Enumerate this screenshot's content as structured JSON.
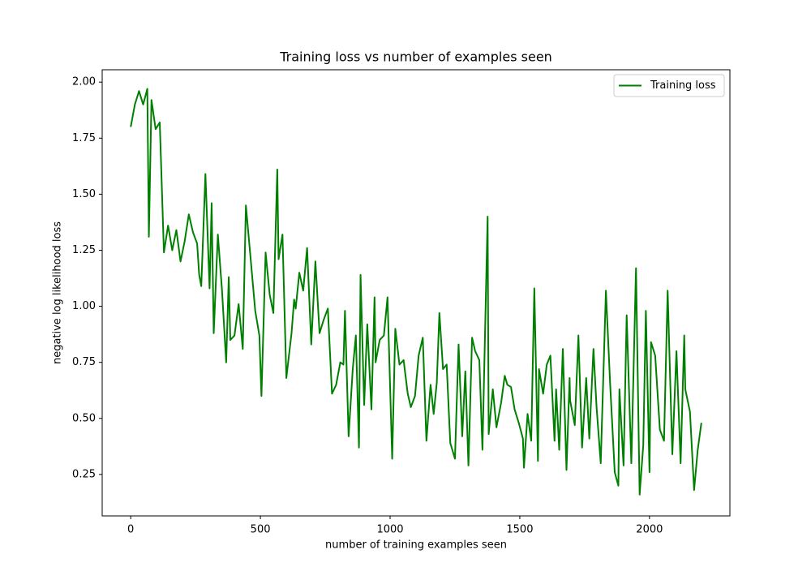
{
  "chart_data": {
    "type": "line",
    "title": "Training loss vs number of examples seen",
    "xlabel": "number of training examples seen",
    "ylabel": "negative log likelihood loss",
    "x": [
      0,
      16,
      32,
      48,
      64,
      70,
      80,
      96,
      112,
      128,
      144,
      160,
      176,
      192,
      208,
      224,
      240,
      256,
      264,
      272,
      288,
      304,
      312,
      320,
      336,
      352,
      368,
      378,
      384,
      400,
      416,
      432,
      444,
      464,
      480,
      496,
      504,
      520,
      536,
      550,
      565,
      570,
      585,
      600,
      620,
      630,
      636,
      650,
      665,
      680,
      696,
      712,
      728,
      744,
      760,
      776,
      792,
      808,
      820,
      826,
      840,
      856,
      868,
      880,
      886,
      900,
      912,
      928,
      940,
      944,
      960,
      976,
      990,
      1008,
      1020,
      1036,
      1052,
      1068,
      1080,
      1096,
      1110,
      1126,
      1140,
      1156,
      1168,
      1180,
      1190,
      1204,
      1218,
      1232,
      1250,
      1264,
      1278,
      1290,
      1302,
      1316,
      1328,
      1344,
      1356,
      1376,
      1380,
      1396,
      1410,
      1428,
      1442,
      1452,
      1466,
      1480,
      1496,
      1512,
      1516,
      1530,
      1544,
      1556,
      1570,
      1574,
      1590,
      1604,
      1618,
      1634,
      1640,
      1652,
      1666,
      1680,
      1692,
      1694,
      1712,
      1726,
      1740,
      1756,
      1768,
      1784,
      1796,
      1812,
      1832,
      1848,
      1866,
      1880,
      1884,
      1900,
      1912,
      1930,
      1948,
      1962,
      1976,
      1986,
      2000,
      2006,
      2022,
      2040,
      2056,
      2070,
      2088,
      2104,
      2120,
      2134,
      2138,
      2156,
      2172,
      2186,
      2200
    ],
    "series": [
      {
        "name": "Training loss",
        "color": "#008000",
        "values": [
          1.8,
          1.9,
          1.96,
          1.9,
          1.97,
          1.31,
          1.92,
          1.79,
          1.82,
          1.24,
          1.36,
          1.25,
          1.34,
          1.2,
          1.29,
          1.41,
          1.33,
          1.28,
          1.14,
          1.09,
          1.59,
          1.08,
          1.46,
          0.88,
          1.32,
          1.07,
          0.75,
          1.13,
          0.85,
          0.87,
          1.01,
          0.81,
          1.45,
          1.19,
          0.98,
          0.87,
          0.6,
          1.24,
          1.05,
          0.97,
          1.61,
          1.21,
          1.32,
          0.68,
          0.88,
          1.03,
          0.99,
          1.15,
          1.07,
          1.26,
          0.83,
          1.2,
          0.88,
          0.94,
          0.99,
          0.61,
          0.65,
          0.75,
          0.74,
          0.98,
          0.42,
          0.72,
          0.87,
          0.37,
          1.14,
          0.56,
          0.92,
          0.54,
          1.04,
          0.75,
          0.85,
          0.87,
          1.04,
          0.32,
          0.9,
          0.74,
          0.76,
          0.61,
          0.55,
          0.6,
          0.78,
          0.86,
          0.4,
          0.65,
          0.52,
          0.66,
          0.97,
          0.72,
          0.74,
          0.39,
          0.32,
          0.83,
          0.42,
          0.71,
          0.29,
          0.86,
          0.8,
          0.76,
          0.36,
          1.4,
          0.43,
          0.63,
          0.46,
          0.57,
          0.69,
          0.65,
          0.64,
          0.54,
          0.48,
          0.41,
          0.28,
          0.52,
          0.4,
          1.08,
          0.31,
          0.72,
          0.61,
          0.74,
          0.78,
          0.4,
          0.63,
          0.36,
          0.81,
          0.27,
          0.68,
          0.58,
          0.47,
          0.87,
          0.37,
          0.68,
          0.41,
          0.81,
          0.55,
          0.3,
          1.07,
          0.66,
          0.26,
          0.2,
          0.63,
          0.29,
          0.96,
          0.3,
          1.17,
          0.16,
          0.38,
          0.98,
          0.26,
          0.84,
          0.78,
          0.45,
          0.4,
          1.07,
          0.34,
          0.8,
          0.3,
          0.87,
          0.63,
          0.53,
          0.18,
          0.36,
          0.48
        ]
      }
    ],
    "xlim": [
      -110,
      2310
    ],
    "ylim": [
      0.065,
      2.055
    ],
    "xticks": [
      0,
      500,
      1000,
      1500,
      2000
    ],
    "yticks": [
      0.25,
      {
        "value": 0.5,
        "label": "0.50"
      },
      0.75,
      {
        "value": 1,
        "label": "1.00"
      },
      1.25,
      {
        "value": 1.5,
        "label": "1.50"
      },
      1.75,
      {
        "value": 2,
        "label": "2.00"
      }
    ],
    "legend": "upper right"
  }
}
